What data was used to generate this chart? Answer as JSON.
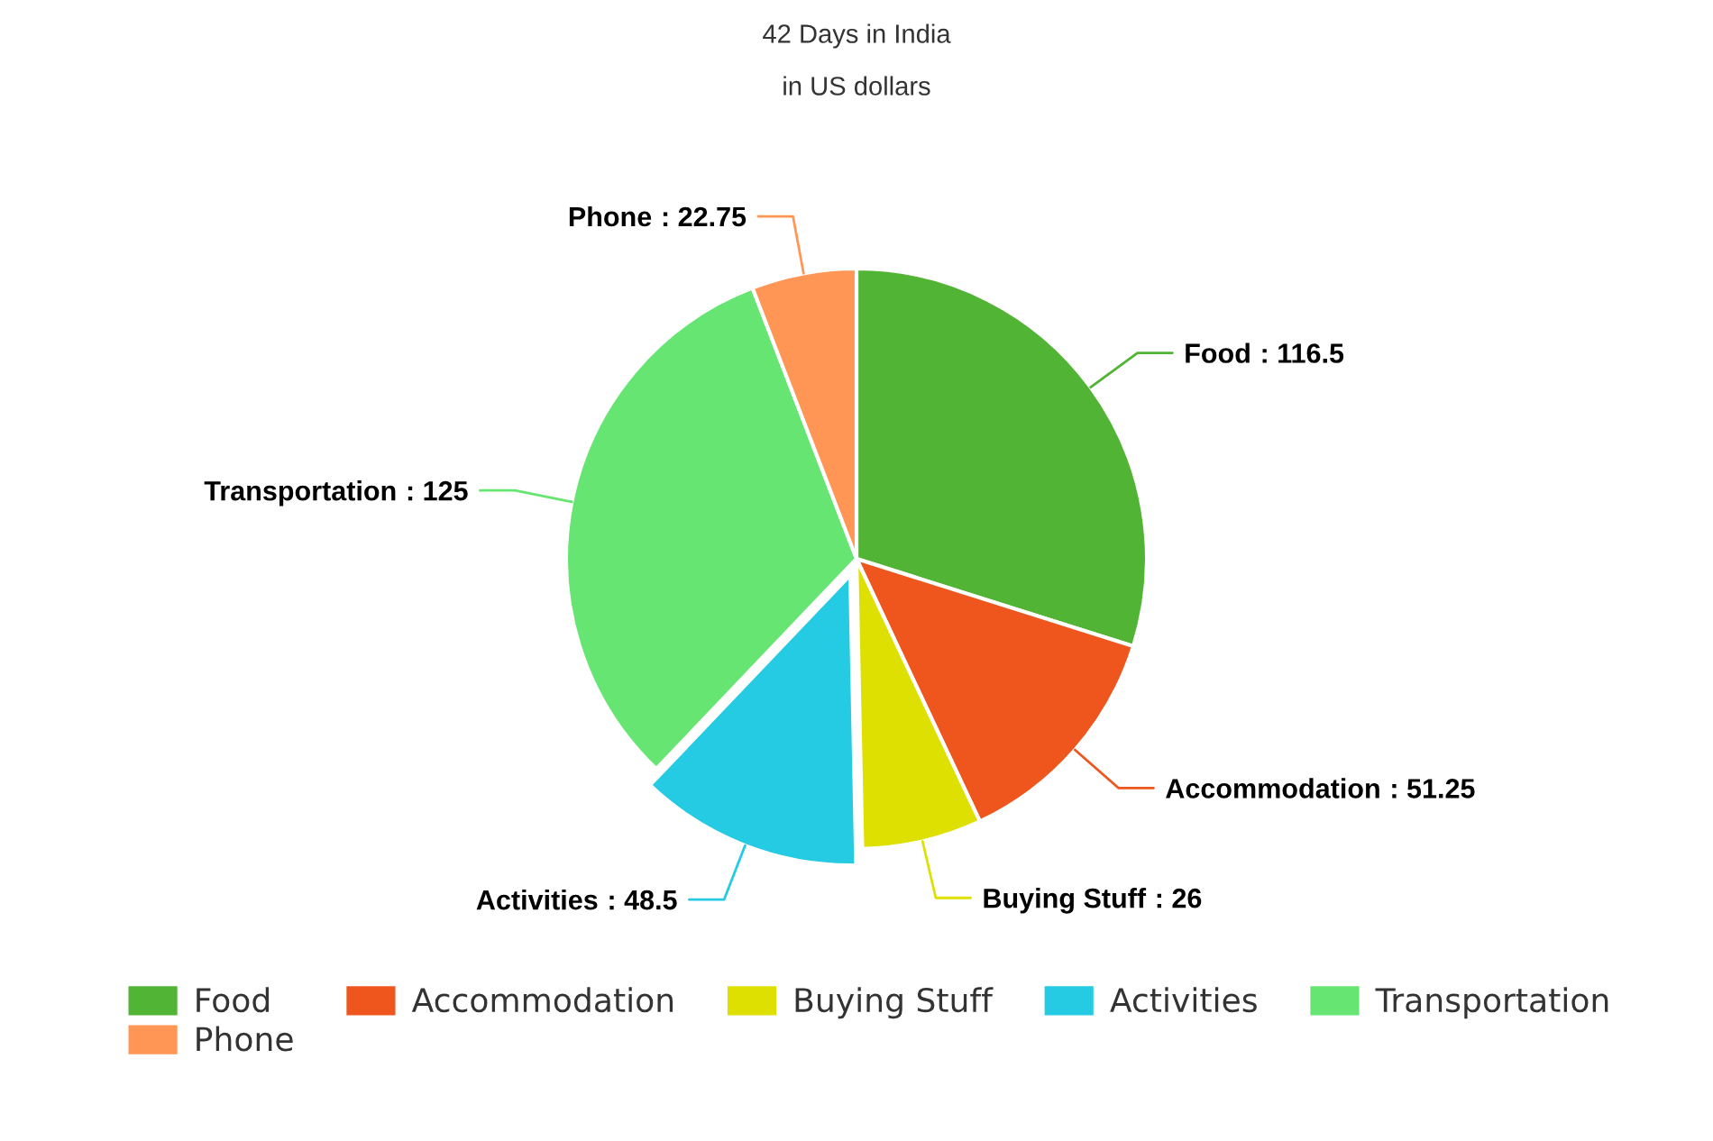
{
  "chart_data": {
    "type": "pie",
    "title": "42 Days in India",
    "subtitle": "in US dollars",
    "categories": [
      "Food",
      "Accommodation",
      "Buying Stuff",
      "Activities",
      "Transportation",
      "Phone"
    ],
    "values": [
      116.5,
      51.25,
      26,
      48.5,
      125,
      22.75
    ],
    "value_labels": [
      ": 116.5",
      ": 51.25",
      ": 26",
      ": 48.5",
      ": 125",
      ": 22.75"
    ],
    "colors": [
      "#52b434",
      "#ef561d",
      "#dde001",
      "#25cae3",
      "#66e572",
      "#ff9655"
    ],
    "legend": "bottom"
  }
}
